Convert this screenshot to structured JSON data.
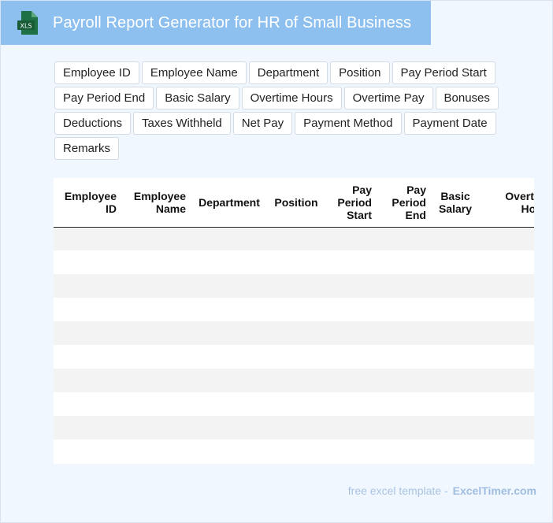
{
  "app": {
    "title": "Payroll Report Generator for HR of Small Business",
    "file_badge": "XLS"
  },
  "fields": [
    "Employee ID",
    "Employee Name",
    "Department",
    "Position",
    "Pay Period Start",
    "Pay Period End",
    "Basic Salary",
    "Overtime Hours",
    "Overtime Pay",
    "Bonuses",
    "Deductions",
    "Taxes Withheld",
    "Net Pay",
    "Payment Method",
    "Payment Date",
    "Remarks"
  ],
  "table": {
    "headers": [
      "Employee ID",
      "Employee Name",
      "Department",
      "Position",
      "Pay Period Start",
      "Pay Period End",
      "Basic Salary",
      "Overtime Hours"
    ]
  },
  "footer": {
    "text": "free excel template -",
    "brand": "ExcelTimer.com"
  },
  "colors": {
    "title_bar": "#8ec0ef",
    "icon_green": "#1e7145",
    "background": "#f1f7fe"
  }
}
